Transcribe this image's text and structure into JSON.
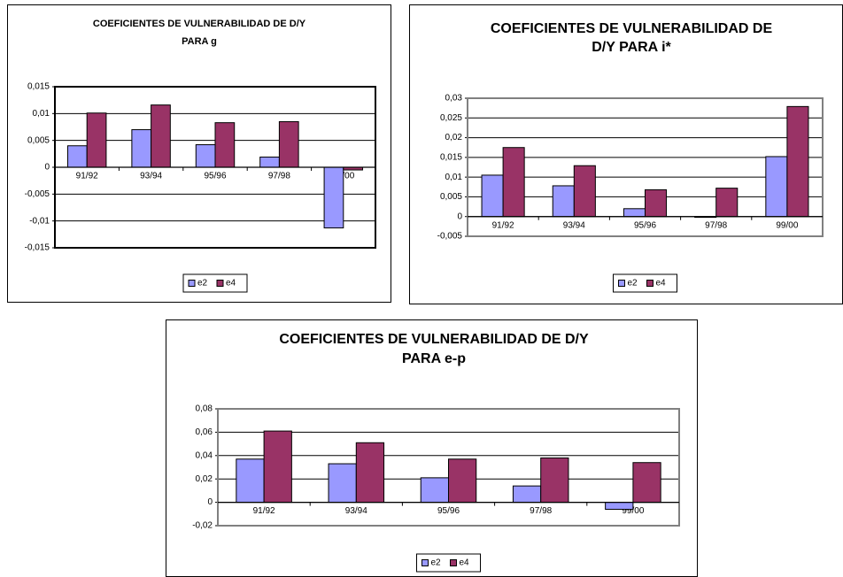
{
  "chart_data": [
    {
      "type": "bar",
      "title": [
        "COEFICIENTES DE VULNERABILIDAD DE D/Y",
        "PARA g"
      ],
      "categories": [
        "91/92",
        "93/94",
        "95/96",
        "97/98",
        "99/00"
      ],
      "series": [
        {
          "name": "e2",
          "color": "#9999ff",
          "values": [
            0.004,
            0.007,
            0.0042,
            0.0019,
            -0.0113
          ]
        },
        {
          "name": "e4",
          "color": "#993366",
          "values": [
            0.0101,
            0.0116,
            0.0083,
            0.0085,
            -0.0005
          ]
        }
      ],
      "ylim": [
        -0.015,
        0.015
      ],
      "yticks": [
        {
          "value": -0.015,
          "label": "-0,015"
        },
        {
          "value": -0.01,
          "label": "-0,01"
        },
        {
          "value": -0.005,
          "label": "-0,005"
        },
        0,
        {
          "value": 0.005,
          "label": "0,005"
        },
        {
          "value": 0.01,
          "label": "0,01"
        },
        {
          "value": 0.015,
          "label": "0,015"
        }
      ],
      "grid": true,
      "legend": "bottom"
    },
    {
      "type": "bar",
      "title": [
        "COEFICIENTES DE VULNERABILIDAD DE",
        "D/Y PARA i*"
      ],
      "categories": [
        "91/92",
        "93/94",
        "95/96",
        "97/98",
        "99/00"
      ],
      "series": [
        {
          "name": "e2",
          "color": "#9999ff",
          "values": [
            0.0105,
            0.0078,
            0.002,
            -0.0002,
            0.0152
          ]
        },
        {
          "name": "e4",
          "color": "#993366",
          "values": [
            0.0175,
            0.0129,
            0.0068,
            0.0072,
            0.0279
          ]
        }
      ],
      "ylim": [
        -0.005,
        0.03
      ],
      "yticks": [
        {
          "value": -0.005,
          "label": "-0,005"
        },
        0,
        {
          "value": 0.005,
          "label": "0,005"
        },
        {
          "value": 0.01,
          "label": "0,01"
        },
        {
          "value": 0.015,
          "label": "0,015"
        },
        {
          "value": 0.02,
          "label": "0,02"
        },
        {
          "value": 0.025,
          "label": "0,025"
        },
        {
          "value": 0.03,
          "label": "0,03"
        }
      ],
      "grid": true,
      "legend": "bottom"
    },
    {
      "type": "bar",
      "title": [
        "COEFICIENTES DE VULNERABILIDAD DE D/Y",
        "PARA e-p"
      ],
      "categories": [
        "91/92",
        "93/94",
        "95/96",
        "97/98",
        "99/00"
      ],
      "series": [
        {
          "name": "e2",
          "color": "#9999ff",
          "values": [
            0.037,
            0.033,
            0.021,
            0.014,
            -0.006
          ]
        },
        {
          "name": "e4",
          "color": "#993366",
          "values": [
            0.061,
            0.051,
            0.037,
            0.038,
            0.034
          ]
        }
      ],
      "ylim": [
        -0.02,
        0.08
      ],
      "yticks": [
        {
          "value": -0.02,
          "label": "-0,02"
        },
        0,
        {
          "value": 0.02,
          "label": "0,02"
        },
        {
          "value": 0.04,
          "label": "0,04"
        },
        {
          "value": 0.06,
          "label": "0,06"
        },
        {
          "value": 0.08,
          "label": "0,08"
        }
      ],
      "grid": true,
      "legend": "bottom"
    }
  ]
}
